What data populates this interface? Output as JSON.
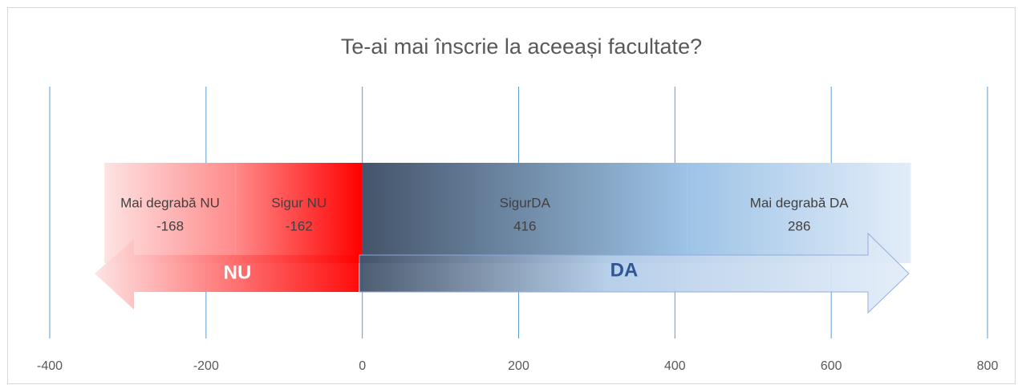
{
  "chart_data": {
    "type": "bar",
    "orientation": "horizontal",
    "stacked": true,
    "title": "Te-ai mai înscrie la aceeași facultate?",
    "series": [
      {
        "name": "Sigur NU",
        "values": [
          -162
        ],
        "gradient": [
          "#ff8a8a",
          "#ff0000"
        ]
      },
      {
        "name": "Mai degrabă NU",
        "values": [
          -168
        ],
        "gradient": [
          "#fde3e3",
          "#ff8a8a"
        ]
      },
      {
        "name": "SigurDA",
        "values": [
          416
        ],
        "gradient": [
          "#44546a",
          "#9dc3e6"
        ]
      },
      {
        "name": "Mai degrabă DA",
        "values": [
          286
        ],
        "gradient": [
          "#9dc3e6",
          "#e3edf9"
        ]
      }
    ],
    "annotations": [
      "NU",
      "DA"
    ],
    "xlim": [
      -400,
      800
    ],
    "xticks": [
      -400,
      -200,
      0,
      200,
      400,
      600,
      800
    ],
    "grid": true,
    "grid_color": "#5b9bd5"
  }
}
